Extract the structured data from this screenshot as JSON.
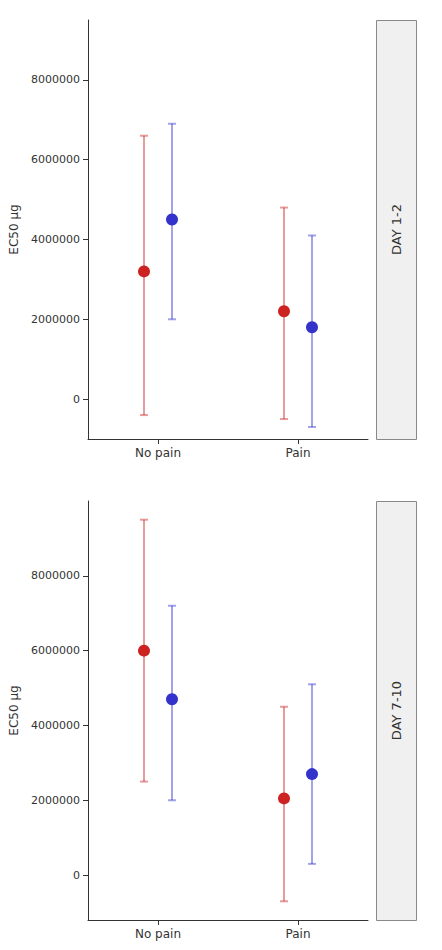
{
  "chart_data": [
    {
      "type": "scatter",
      "annotation": "DAY 1-2",
      "ylabel": "EC50 μg",
      "categories": [
        "No pain",
        "Pain"
      ],
      "series": [
        {
          "color": "#cc2222",
          "values": [
            3200000,
            2200000
          ],
          "lower": [
            -400000,
            -500000
          ],
          "upper": [
            6600000,
            4800000
          ]
        },
        {
          "color": "#3333cc",
          "values": [
            4500000,
            1800000
          ],
          "lower": [
            2000000,
            -700000
          ],
          "upper": [
            6900000,
            4100000
          ]
        }
      ],
      "ylim": [
        -1000000,
        9500000
      ],
      "yticks": [
        0,
        2000000,
        4000000,
        6000000,
        8000000
      ],
      "grid": false
    },
    {
      "type": "scatter",
      "annotation": "DAY 7-10",
      "ylabel": "EC50 μg",
      "categories": [
        "No pain",
        "Pain"
      ],
      "series": [
        {
          "color": "#cc2222",
          "values": [
            6000000,
            2050000
          ],
          "lower": [
            2500000,
            -700000
          ],
          "upper": [
            9500000,
            4500000
          ]
        },
        {
          "color": "#3333cc",
          "values": [
            4700000,
            2700000
          ],
          "lower": [
            2000000,
            300000
          ],
          "upper": [
            7200000,
            5100000
          ]
        }
      ],
      "ylim": [
        -1200000,
        10000000
      ],
      "yticks": [
        0,
        2000000,
        4000000,
        6000000,
        8000000
      ],
      "grid": false
    }
  ]
}
